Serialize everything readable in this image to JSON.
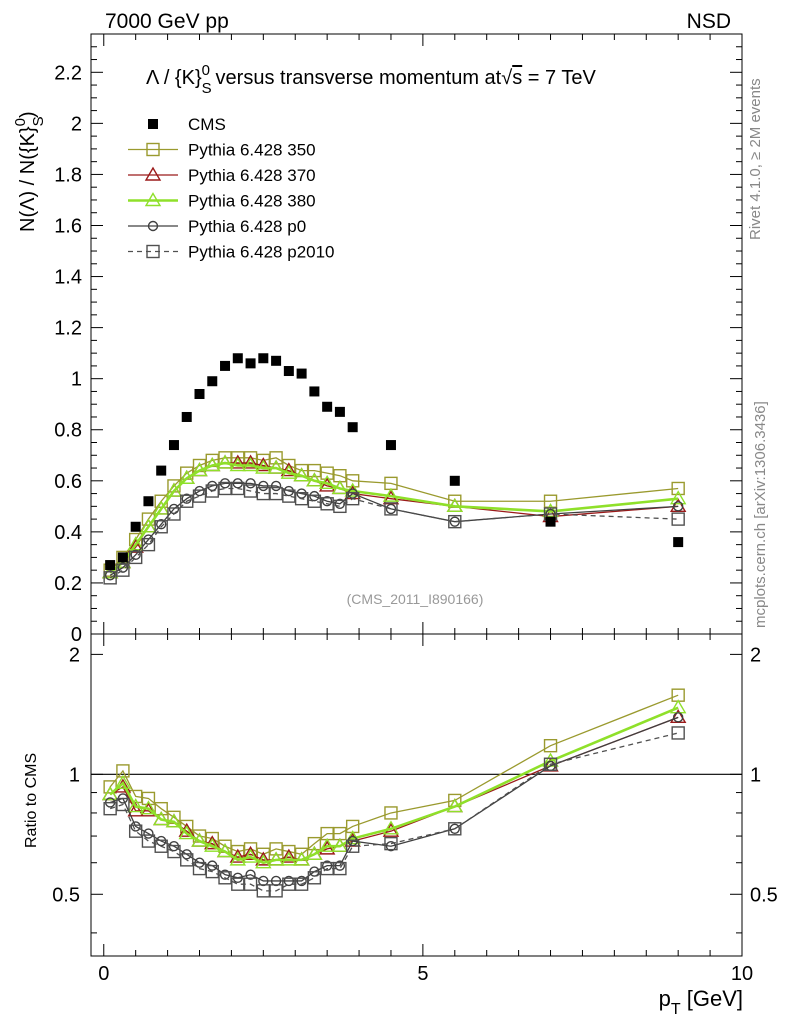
{
  "header": {
    "left": "7000 GeV pp",
    "right": "NSD"
  },
  "side_text": {
    "rivet": "Rivet 4.1.0, ≥ 2M events",
    "mcplots": "mcplots.cern.ch [arXiv:1306.3436]"
  },
  "chart_data": {
    "type": "scatter",
    "title": "Λ / {K}S0 versus transverse momentum at √s = 7 TeV",
    "title_parts": {
      "lambda": "Λ",
      "slash": " / {K}",
      "sub": "S",
      "sup": "0",
      "rest": " versus transverse momentum at",
      "sqrt": "√",
      "s": "s",
      "eq": " = 7 TeV"
    },
    "ylabel": "N(Λ)  /  N({K}S0)",
    "ylabel_parts": {
      "main": "N(Λ)  /  N({K}",
      "sub": "S",
      "sup": "0",
      "close": ")"
    },
    "xlabel": "pT [GeV]",
    "xlabel_parts": {
      "p": "p",
      "sub": "T",
      "rest": " [GeV]"
    },
    "ratio_ylabel": "Ratio to CMS",
    "analysis_tag": "(CMS_2011_I890166)",
    "xlim": [
      -0.2,
      10
    ],
    "ylim": [
      0,
      2.35
    ],
    "ratio_ylim": [
      0.35,
      2.25
    ],
    "x_ticks": [
      0,
      5,
      10
    ],
    "y_ticks": [
      0,
      0.2,
      0.4,
      0.6,
      0.8,
      1,
      1.2,
      1.4,
      1.6,
      1.8,
      2,
      2.2
    ],
    "y_tick_labels": [
      "0",
      "0.2",
      "0.4",
      "0.6",
      "0.8",
      "1",
      "1.2",
      "1.4",
      "1.6",
      "1.8",
      "2",
      "2.2"
    ],
    "ratio_ticks": [
      0.5,
      1,
      2
    ],
    "ratio_tick_labels": [
      "0.5",
      "1",
      "2"
    ],
    "x": [
      0.1,
      0.3,
      0.5,
      0.7,
      0.9,
      1.1,
      1.3,
      1.5,
      1.7,
      1.9,
      2.1,
      2.3,
      2.5,
      2.7,
      2.9,
      3.1,
      3.3,
      3.5,
      3.7,
      3.9,
      4.5,
      5.5,
      7.0,
      9.0
    ],
    "series": [
      {
        "name": "CMS",
        "color": "#000000",
        "marker": "filled-square",
        "line": "none",
        "values": [
          0.27,
          0.3,
          0.42,
          0.52,
          0.64,
          0.74,
          0.85,
          0.94,
          0.99,
          1.05,
          1.08,
          1.06,
          1.08,
          1.07,
          1.03,
          1.02,
          0.95,
          0.89,
          0.87,
          0.81,
          0.74,
          0.6,
          0.44,
          0.36
        ]
      },
      {
        "name": "Pythia 6.428 350",
        "color": "#9a9a2e",
        "marker": "open-square",
        "line": "solid",
        "values": [
          0.25,
          0.3,
          0.37,
          0.45,
          0.52,
          0.58,
          0.63,
          0.66,
          0.68,
          0.69,
          0.69,
          0.69,
          0.68,
          0.69,
          0.66,
          0.64,
          0.64,
          0.63,
          0.62,
          0.6,
          0.59,
          0.52,
          0.52,
          0.57
        ],
        "ratio": [
          0.93,
          1.02,
          0.88,
          0.87,
          0.82,
          0.78,
          0.74,
          0.7,
          0.69,
          0.66,
          0.64,
          0.65,
          0.63,
          0.65,
          0.64,
          0.63,
          0.67,
          0.71,
          0.71,
          0.74,
          0.8,
          0.86,
          1.18,
          1.58
        ]
      },
      {
        "name": "Pythia 6.428 370",
        "color": "#9b1a1a",
        "marker": "open-triangle",
        "line": "solid",
        "values": [
          0.24,
          0.28,
          0.34,
          0.42,
          0.49,
          0.56,
          0.61,
          0.64,
          0.66,
          0.67,
          0.67,
          0.67,
          0.66,
          0.65,
          0.64,
          0.62,
          0.6,
          0.58,
          0.57,
          0.55,
          0.53,
          0.5,
          0.46,
          0.5
        ],
        "ratio": [
          0.89,
          0.93,
          0.81,
          0.81,
          0.77,
          0.76,
          0.72,
          0.68,
          0.67,
          0.64,
          0.62,
          0.63,
          0.61,
          0.61,
          0.62,
          0.61,
          0.63,
          0.65,
          0.66,
          0.68,
          0.72,
          0.83,
          1.05,
          1.39
        ]
      },
      {
        "name": "Pythia 6.428 380",
        "color": "#8fe02a",
        "marker": "open-triangle",
        "line": "solid-thick",
        "values": [
          0.24,
          0.28,
          0.35,
          0.42,
          0.49,
          0.56,
          0.61,
          0.64,
          0.66,
          0.67,
          0.66,
          0.66,
          0.65,
          0.65,
          0.63,
          0.62,
          0.6,
          0.59,
          0.57,
          0.56,
          0.54,
          0.5,
          0.48,
          0.53
        ],
        "ratio": [
          0.89,
          0.95,
          0.83,
          0.82,
          0.77,
          0.76,
          0.71,
          0.68,
          0.66,
          0.64,
          0.61,
          0.62,
          0.6,
          0.61,
          0.61,
          0.61,
          0.63,
          0.66,
          0.66,
          0.69,
          0.73,
          0.83,
          1.08,
          1.47
        ]
      },
      {
        "name": "Pythia 6.428 p0",
        "color": "#404040",
        "marker": "open-circle",
        "line": "solid",
        "values": [
          0.23,
          0.26,
          0.31,
          0.37,
          0.43,
          0.49,
          0.53,
          0.56,
          0.58,
          0.59,
          0.59,
          0.59,
          0.58,
          0.58,
          0.56,
          0.55,
          0.54,
          0.52,
          0.51,
          0.55,
          0.49,
          0.44,
          0.47,
          0.5
        ],
        "ratio": [
          0.85,
          0.87,
          0.74,
          0.71,
          0.68,
          0.66,
          0.63,
          0.6,
          0.59,
          0.56,
          0.55,
          0.56,
          0.54,
          0.54,
          0.54,
          0.54,
          0.57,
          0.59,
          0.59,
          0.68,
          0.66,
          0.73,
          1.05,
          1.39
        ]
      },
      {
        "name": "Pythia 6.428 p2010",
        "color": "#505050",
        "marker": "open-square",
        "line": "dashed",
        "values": [
          0.22,
          0.25,
          0.3,
          0.35,
          0.42,
          0.47,
          0.52,
          0.54,
          0.56,
          0.57,
          0.57,
          0.56,
          0.55,
          0.55,
          0.54,
          0.53,
          0.52,
          0.51,
          0.5,
          0.53,
          0.49,
          0.44,
          0.47,
          0.45
        ],
        "ratio": [
          0.82,
          0.84,
          0.72,
          0.68,
          0.66,
          0.64,
          0.61,
          0.58,
          0.57,
          0.55,
          0.53,
          0.53,
          0.51,
          0.51,
          0.53,
          0.53,
          0.55,
          0.58,
          0.58,
          0.66,
          0.67,
          0.73,
          1.06,
          1.27
        ]
      }
    ]
  }
}
